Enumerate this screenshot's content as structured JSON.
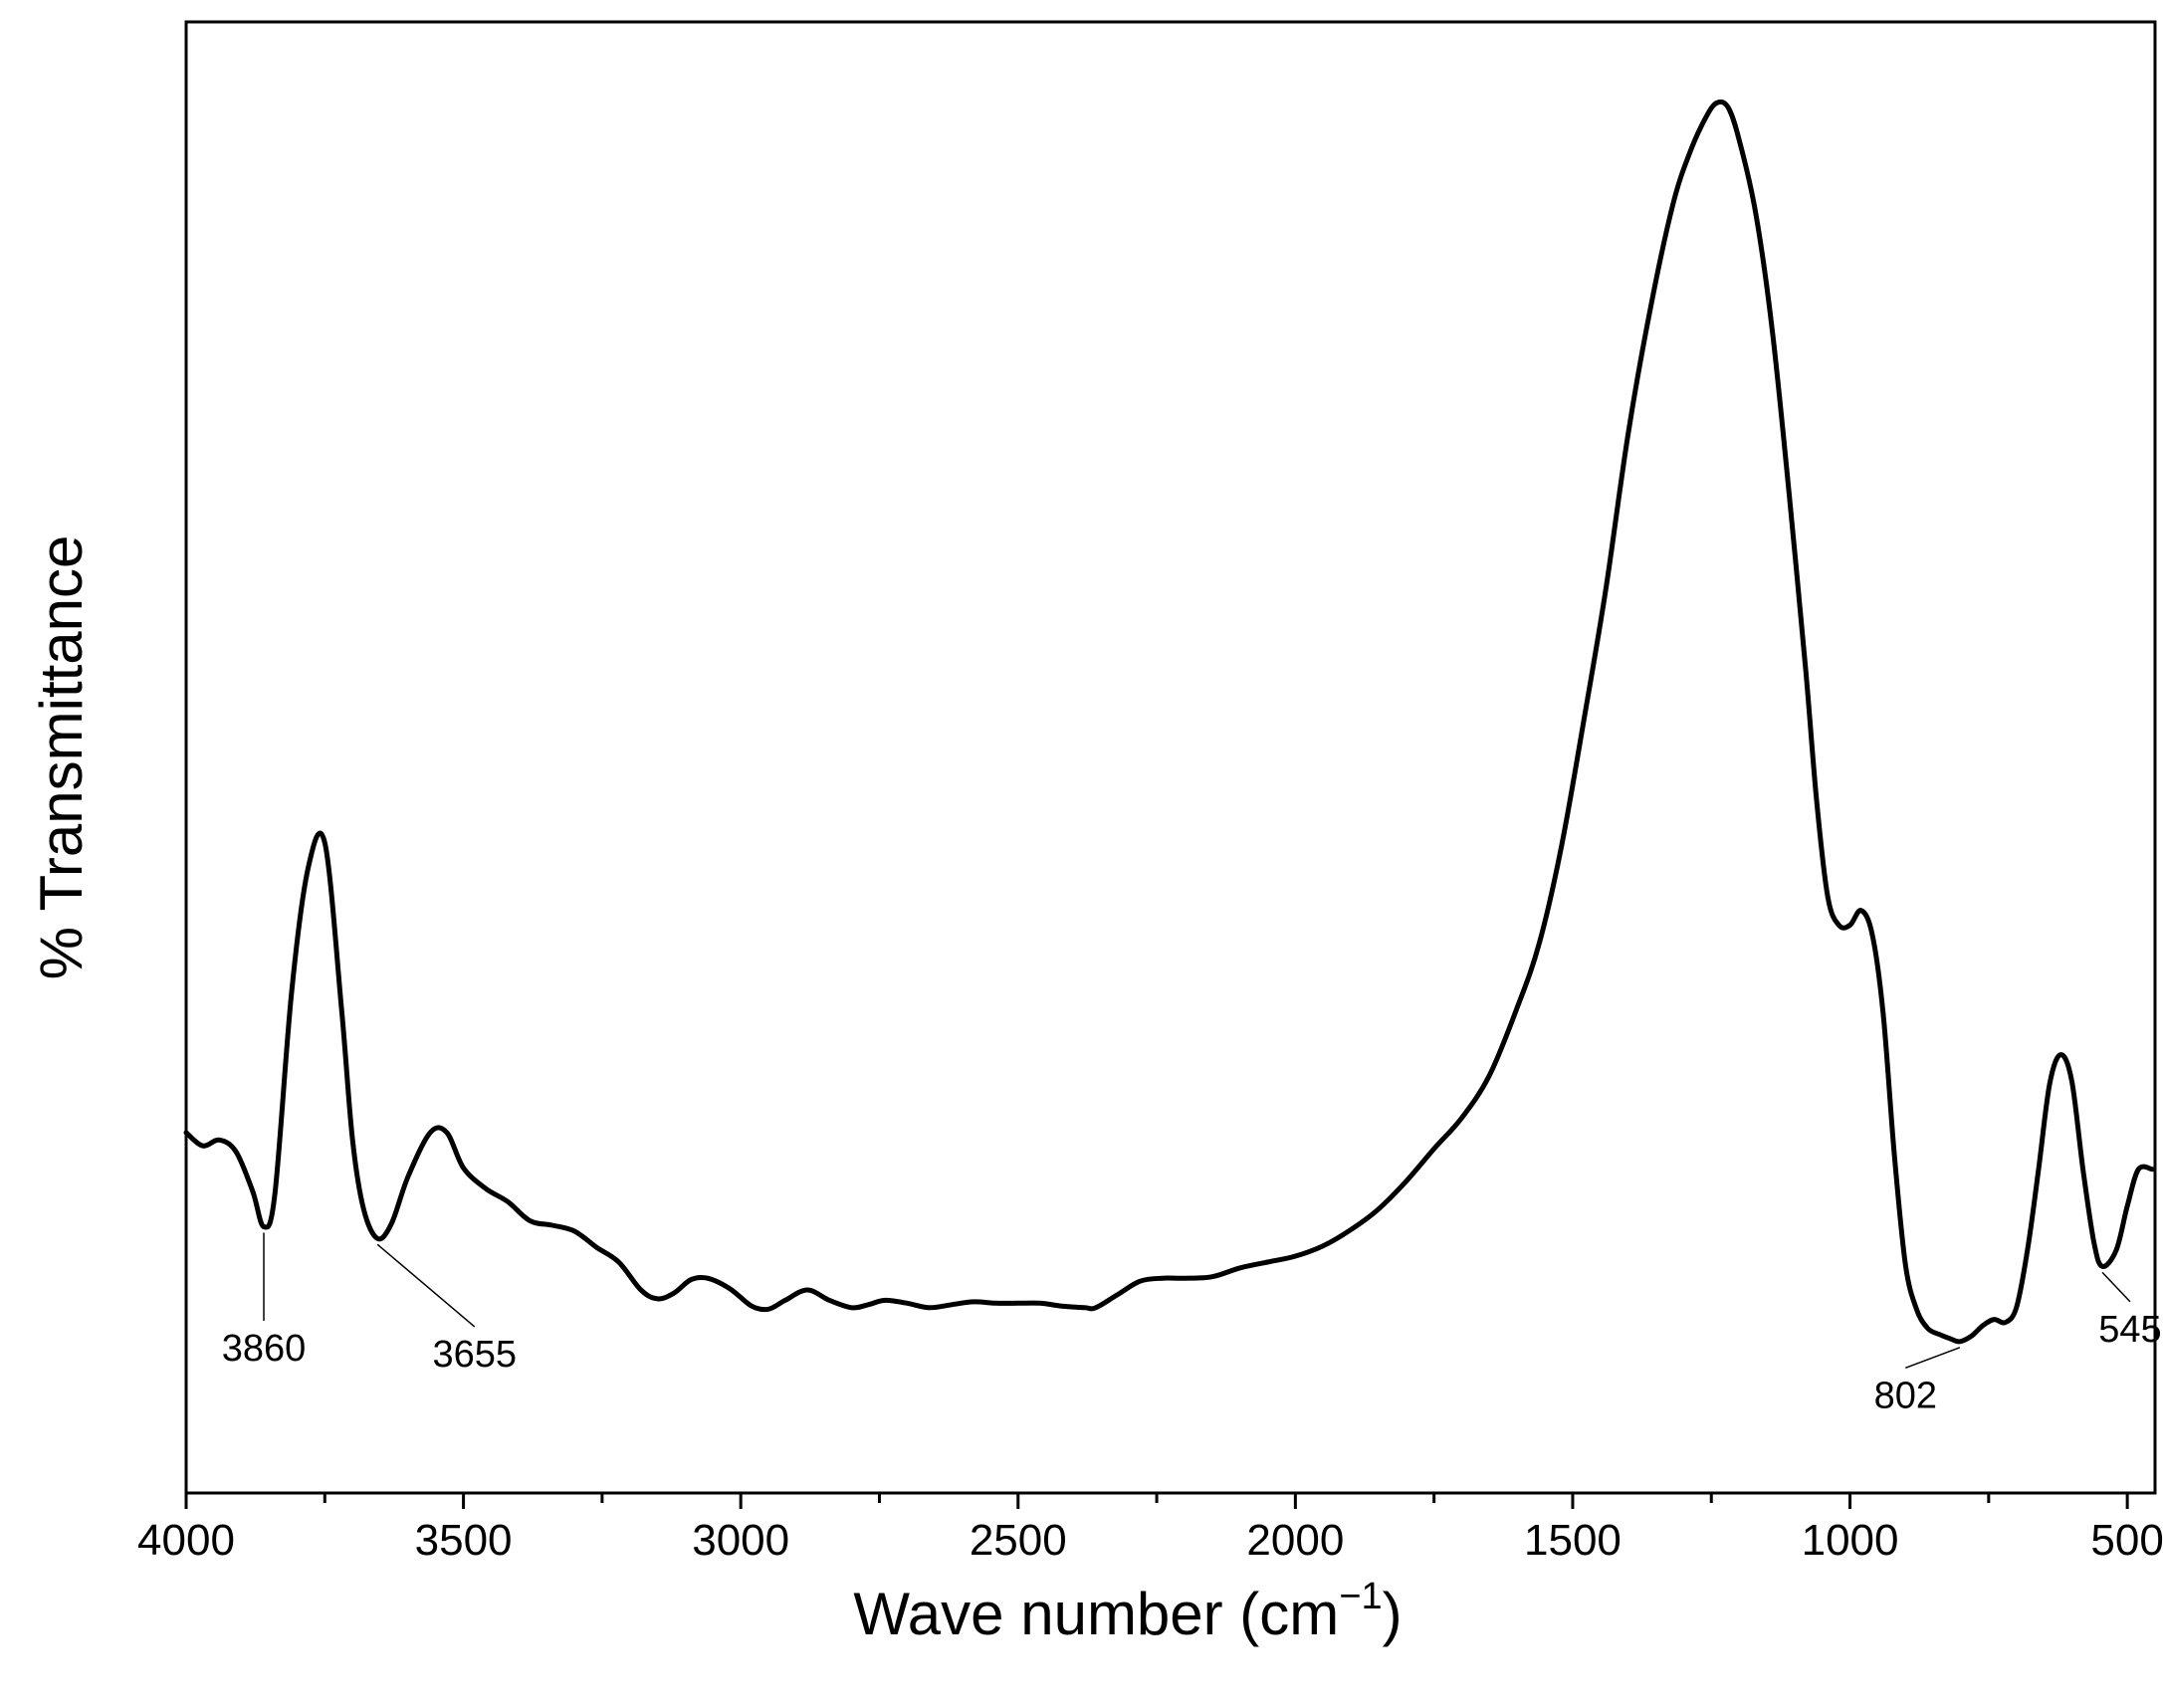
{
  "chart_data": {
    "type": "line",
    "title": "",
    "xlabel": "Wave number (cm",
    "xlabel_sup": "−1",
    "xlabel_close": ")",
    "ylabel": "% Transmittance",
    "xlim": [
      4000,
      450
    ],
    "ylim": [
      0,
      100
    ],
    "x_reversed": true,
    "x_ticks": [
      4000,
      3500,
      3000,
      2500,
      2000,
      1500,
      1000,
      500
    ],
    "x_tick_labels": [
      "4000",
      "3500",
      "3000",
      "2500",
      "2000",
      "1500",
      "1000",
      "500"
    ],
    "x_minor_ticks": [
      3750,
      3250,
      2750,
      2250,
      1750,
      1250,
      750
    ],
    "y_ticks_shown": false,
    "grid": false,
    "legend": "none",
    "line_color": "#000000",
    "series": [
      {
        "x": [
          4000,
          3970,
          3940,
          3910,
          3880,
          3860,
          3840,
          3810,
          3780,
          3750,
          3720,
          3700,
          3680,
          3655,
          3630,
          3600,
          3560,
          3530,
          3500,
          3460,
          3420,
          3380,
          3340,
          3300,
          3260,
          3220,
          3180,
          3150,
          3120,
          3090,
          3060,
          3020,
          2980,
          2950,
          2920,
          2880,
          2840,
          2800,
          2770,
          2740,
          2700,
          2660,
          2620,
          2580,
          2540,
          2500,
          2460,
          2420,
          2380,
          2360,
          2320,
          2280,
          2240,
          2200,
          2150,
          2100,
          2050,
          2000,
          1950,
          1900,
          1850,
          1800,
          1750,
          1700,
          1650,
          1600,
          1560,
          1520,
          1480,
          1440,
          1400,
          1360,
          1320,
          1290,
          1260,
          1240,
          1220,
          1200,
          1170,
          1140,
          1110,
          1080,
          1060,
          1040,
          1020,
          1000,
          980,
          960,
          940,
          920,
          900,
          880,
          860,
          840,
          820,
          802,
          780,
          760,
          740,
          720,
          700,
          680,
          660,
          640,
          620,
          600,
          580,
          560,
          545,
          520,
          500,
          480,
          455
        ],
        "y": [
          24.5,
          23.6,
          24.0,
          23.2,
          20.5,
          18.1,
          20.3,
          34.0,
          42.5,
          44.2,
          33.0,
          24.0,
          19.3,
          17.3,
          18.3,
          21.5,
          24.5,
          24.5,
          22.1,
          20.7,
          19.8,
          18.5,
          18.2,
          17.8,
          16.7,
          15.7,
          13.8,
          13.2,
          13.6,
          14.5,
          14.6,
          13.9,
          12.7,
          12.5,
          13.1,
          13.8,
          13.1,
          12.6,
          12.8,
          13.1,
          12.9,
          12.6,
          12.8,
          13.0,
          12.9,
          12.9,
          12.9,
          12.7,
          12.6,
          12.6,
          13.5,
          14.4,
          14.6,
          14.6,
          14.7,
          15.3,
          15.7,
          16.1,
          16.8,
          17.9,
          19.3,
          21.2,
          23.4,
          25.5,
          28.4,
          33.0,
          37.4,
          44.0,
          52.5,
          61.5,
          72.0,
          80.5,
          87.5,
          91.0,
          93.5,
          94.5,
          94.2,
          92.0,
          87.0,
          79.0,
          68.0,
          56.0,
          47.0,
          40.5,
          38.6,
          38.6,
          39.6,
          38.0,
          32.5,
          23.0,
          15.5,
          12.5,
          11.2,
          10.8,
          10.5,
          10.3,
          10.7,
          11.4,
          11.8,
          11.6,
          12.6,
          16.5,
          22.0,
          27.8,
          29.8,
          28.0,
          22.0,
          17.0,
          15.4,
          16.5,
          19.5,
          22.0,
          22.0
        ]
      }
    ],
    "annotations": [
      {
        "label": "3860",
        "x": 3860,
        "y": 18.1,
        "text_x": 3860,
        "text_y": 9.0
      },
      {
        "label": "3655",
        "x": 3655,
        "y": 17.3,
        "text_x": 3480,
        "text_y": 8.6
      },
      {
        "label": "802",
        "x": 802,
        "y": 10.3,
        "text_x": 900,
        "text_y": 5.8
      },
      {
        "label": "545",
        "x": 545,
        "y": 15.4,
        "text_x": 495,
        "text_y": 10.3
      }
    ]
  }
}
